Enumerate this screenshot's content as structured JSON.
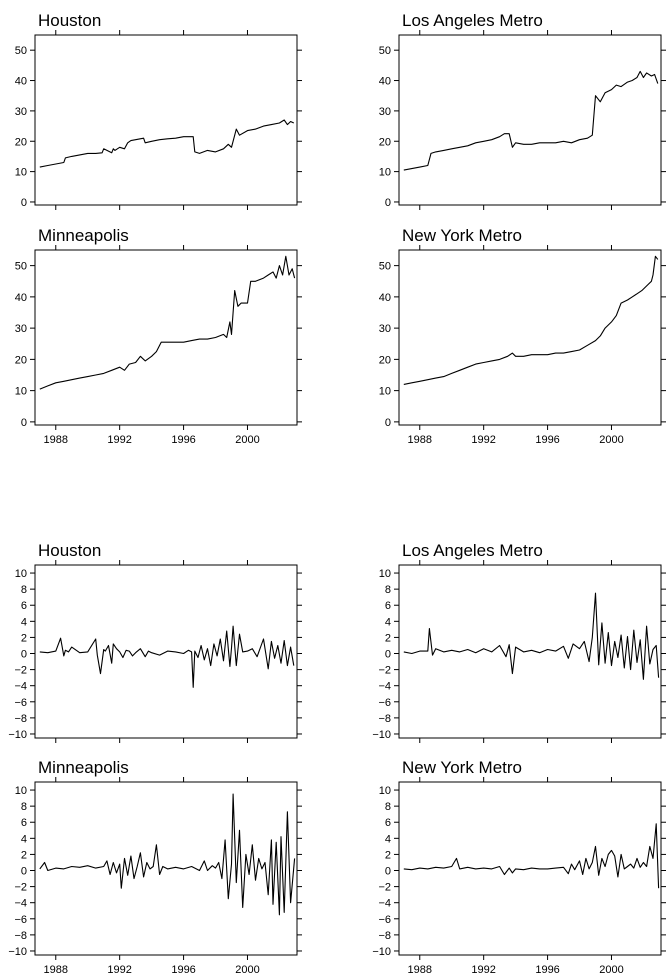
{
  "chart_data": [
    {
      "type": "line",
      "title": "Houston",
      "ylim": [
        -1,
        55
      ],
      "xlim": [
        1986.7,
        2003.1
      ],
      "y_ticks": [
        0,
        10,
        20,
        30,
        40,
        50
      ],
      "x_ticks": [
        1988,
        1992,
        1996,
        2000
      ],
      "show_x_tick_labels": false,
      "series": [
        {
          "x": [
            1987.0,
            1987.5,
            1988.0,
            1988.5,
            1988.6,
            1989.0,
            1989.5,
            1990.0,
            1990.5,
            1990.9,
            1991.0,
            1991.5,
            1991.6,
            1991.7,
            1992.0,
            1992.3,
            1992.5,
            1992.7,
            1993.0,
            1993.5,
            1993.6,
            1994.0,
            1994.5,
            1995.0,
            1995.5,
            1996.0,
            1996.5,
            1996.6,
            1996.7,
            1997.0,
            1997.5,
            1998.0,
            1998.5,
            1998.8,
            1999.0,
            1999.3,
            1999.5,
            2000.0,
            2000.5,
            2001.0,
            2001.5,
            2002.0,
            2002.3,
            2002.5,
            2002.7,
            2002.9
          ],
          "y": [
            11.5,
            12,
            12.5,
            13,
            14.5,
            15,
            15.5,
            16,
            16,
            16.2,
            17.5,
            16.2,
            17.5,
            17,
            18,
            17.5,
            19.5,
            20.2,
            20.5,
            21,
            19.5,
            20,
            20.5,
            20.8,
            21,
            21.5,
            21.5,
            21.5,
            16.5,
            16,
            17,
            16.5,
            17.5,
            19,
            18,
            24,
            22,
            23.5,
            24,
            25,
            25.5,
            26,
            27,
            25.5,
            26.5,
            26
          ]
        }
      ]
    },
    {
      "type": "line",
      "title": "Los Angeles Metro",
      "ylim": [
        -1,
        55
      ],
      "xlim": [
        1986.7,
        2003.1
      ],
      "y_ticks": [
        0,
        10,
        20,
        30,
        40,
        50
      ],
      "x_ticks": [
        1988,
        1992,
        1996,
        2000
      ],
      "show_x_tick_labels": false,
      "series": [
        {
          "x": [
            1987.0,
            1987.5,
            1988.0,
            1988.5,
            1988.7,
            1989.0,
            1989.5,
            1990.0,
            1990.5,
            1991.0,
            1991.5,
            1992.0,
            1992.5,
            1993.0,
            1993.3,
            1993.6,
            1993.8,
            1994.0,
            1994.5,
            1995.0,
            1995.5,
            1996.0,
            1996.5,
            1997.0,
            1997.5,
            1998.0,
            1998.5,
            1998.8,
            1999.0,
            1999.3,
            1999.6,
            2000.0,
            2000.3,
            2000.6,
            2001.0,
            2001.3,
            2001.6,
            2001.8,
            2002.0,
            2002.2,
            2002.5,
            2002.7,
            2002.9
          ],
          "y": [
            10.5,
            11,
            11.5,
            12,
            16,
            16.5,
            17,
            17.5,
            18,
            18.5,
            19.5,
            20,
            20.5,
            21.5,
            22.5,
            22.5,
            18,
            19.5,
            19,
            19,
            19.5,
            19.5,
            19.5,
            20,
            19.5,
            20.5,
            21,
            22,
            35,
            33,
            36,
            37,
            38.5,
            38,
            39.5,
            40,
            41,
            43,
            41,
            42.5,
            41.5,
            42,
            39
          ]
        }
      ]
    },
    {
      "type": "line",
      "title": "Minneapolis",
      "ylim": [
        -1,
        55
      ],
      "xlim": [
        1986.7,
        2003.1
      ],
      "y_ticks": [
        0,
        10,
        20,
        30,
        40,
        50
      ],
      "x_ticks": [
        1988,
        1992,
        1996,
        2000
      ],
      "show_x_tick_labels": true,
      "series": [
        {
          "x": [
            1987.0,
            1987.5,
            1988.0,
            1988.5,
            1989.0,
            1989.5,
            1990.0,
            1990.5,
            1991.0,
            1991.5,
            1992.0,
            1992.3,
            1992.6,
            1993.0,
            1993.3,
            1993.6,
            1994.0,
            1994.3,
            1994.6,
            1995.0,
            1995.5,
            1996.0,
            1996.5,
            1997.0,
            1997.5,
            1998.0,
            1998.5,
            1998.7,
            1998.9,
            1999.0,
            1999.2,
            1999.4,
            1999.6,
            2000.0,
            2000.2,
            2000.5,
            2001.0,
            2001.3,
            2001.6,
            2001.8,
            2002.0,
            2002.2,
            2002.4,
            2002.6,
            2002.8,
            2002.95
          ],
          "y": [
            10.5,
            11.5,
            12.5,
            13,
            13.5,
            14,
            14.5,
            15,
            15.5,
            16.5,
            17.5,
            16.5,
            18.5,
            19,
            21,
            19.5,
            21,
            22.5,
            25.5,
            25.5,
            25.5,
            25.5,
            26,
            26.5,
            26.5,
            27,
            28,
            27,
            32,
            28,
            42,
            37,
            38,
            38,
            45,
            45,
            46,
            47,
            48,
            46,
            50,
            47,
            53,
            47,
            49,
            46
          ]
        }
      ]
    },
    {
      "type": "line",
      "title": "New York Metro",
      "ylim": [
        -1,
        55
      ],
      "xlim": [
        1986.7,
        2003.1
      ],
      "y_ticks": [
        0,
        10,
        20,
        30,
        40,
        50
      ],
      "x_ticks": [
        1988,
        1992,
        1996,
        2000
      ],
      "show_x_tick_labels": true,
      "series": [
        {
          "x": [
            1987.0,
            1987.5,
            1988.0,
            1988.5,
            1989.0,
            1989.5,
            1990.0,
            1990.5,
            1991.0,
            1991.5,
            1992.0,
            1992.5,
            1993.0,
            1993.5,
            1993.8,
            1994.0,
            1994.5,
            1995.0,
            1995.5,
            1996.0,
            1996.5,
            1997.0,
            1997.5,
            1998.0,
            1998.5,
            1999.0,
            1999.3,
            1999.6,
            2000.0,
            2000.3,
            2000.6,
            2001.0,
            2001.3,
            2001.6,
            2001.9,
            2002.1,
            2002.3,
            2002.5,
            2002.6,
            2002.75,
            2002.9
          ],
          "y": [
            12,
            12.5,
            13,
            13.5,
            14,
            14.5,
            15.5,
            16.5,
            17.5,
            18.5,
            19,
            19.5,
            20,
            21,
            22,
            21,
            21,
            21.5,
            21.5,
            21.5,
            22,
            22,
            22.5,
            23,
            24.5,
            26,
            27.5,
            30,
            32,
            34,
            38,
            39,
            40,
            41,
            42,
            43,
            44,
            45,
            47,
            53,
            52
          ]
        }
      ]
    },
    {
      "type": "line",
      "title": "Houston",
      "ylim": [
        -10.5,
        11
      ],
      "xlim": [
        1986.7,
        2003.1
      ],
      "y_ticks": [
        10,
        8,
        6,
        4,
        2,
        0,
        -2,
        -4,
        -6,
        -8,
        -10
      ],
      "x_ticks": [
        1988,
        1992,
        1996,
        2000
      ],
      "show_x_tick_labels": false,
      "series": [
        {
          "x": [
            1987.0,
            1987.5,
            1988.0,
            1988.3,
            1988.5,
            1988.6,
            1988.8,
            1989.0,
            1989.5,
            1990.0,
            1990.5,
            1990.6,
            1990.8,
            1991.0,
            1991.1,
            1991.3,
            1991.5,
            1991.6,
            1991.8,
            1992.0,
            1992.2,
            1992.4,
            1992.6,
            1992.8,
            1993.0,
            1993.3,
            1993.6,
            1993.8,
            1994.0,
            1994.5,
            1995.0,
            1995.5,
            1996.0,
            1996.3,
            1996.5,
            1996.6,
            1996.7,
            1996.9,
            1997.1,
            1997.3,
            1997.5,
            1997.7,
            1997.9,
            1998.1,
            1998.3,
            1998.5,
            1998.7,
            1998.9,
            1999.0,
            1999.1,
            1999.3,
            1999.5,
            1999.7,
            2000.0,
            2000.3,
            2000.6,
            2001.0,
            2001.3,
            2001.5,
            2001.7,
            2001.9,
            2002.1,
            2002.3,
            2002.5,
            2002.7,
            2002.9
          ],
          "y": [
            0.2,
            0.1,
            0.3,
            1.9,
            -0.3,
            0.4,
            0.2,
            0.8,
            0.1,
            0.2,
            1.8,
            -0.2,
            -2.5,
            0.5,
            0.3,
            1.0,
            -1.2,
            1.2,
            0.6,
            0.2,
            -0.5,
            0.4,
            0.3,
            -0.3,
            0.1,
            0.6,
            -0.4,
            0.3,
            0.1,
            -0.2,
            0.3,
            0.2,
            0.0,
            0.4,
            0.2,
            -4.2,
            0.3,
            -0.5,
            1.0,
            -0.8,
            0.6,
            -1.5,
            1.2,
            -0.3,
            1.8,
            -0.9,
            2.8,
            -1.6,
            0.7,
            3.4,
            -1.5,
            2.4,
            0.2,
            0.3,
            0.6,
            -0.4,
            1.8,
            -1.9,
            1.5,
            -0.6,
            1.0,
            -1.2,
            1.6,
            -1.5,
            0.8,
            -1.5
          ]
        }
      ]
    },
    {
      "type": "line",
      "title": "Los Angeles Metro",
      "ylim": [
        -10.5,
        11
      ],
      "xlim": [
        1986.7,
        2003.1
      ],
      "y_ticks": [
        10,
        8,
        6,
        4,
        2,
        0,
        -2,
        -4,
        -6,
        -8,
        -10
      ],
      "x_ticks": [
        1988,
        1992,
        1996,
        2000
      ],
      "show_x_tick_labels": false,
      "series": [
        {
          "x": [
            1987.0,
            1987.5,
            1988.0,
            1988.5,
            1988.6,
            1988.8,
            1989.0,
            1989.5,
            1990.0,
            1990.5,
            1991.0,
            1991.5,
            1992.0,
            1992.5,
            1993.0,
            1993.4,
            1993.6,
            1993.8,
            1994.0,
            1994.5,
            1995.0,
            1995.5,
            1996.0,
            1996.5,
            1997.0,
            1997.3,
            1997.6,
            1998.0,
            1998.3,
            1998.6,
            1998.8,
            1999.0,
            1999.2,
            1999.4,
            1999.6,
            1999.8,
            2000.0,
            2000.2,
            2000.4,
            2000.6,
            2000.8,
            2001.0,
            2001.2,
            2001.4,
            2001.6,
            2001.8,
            2002.0,
            2002.2,
            2002.4,
            2002.6,
            2002.8,
            2002.95
          ],
          "y": [
            0.2,
            0.0,
            0.3,
            0.3,
            3.1,
            -0.2,
            0.6,
            0.2,
            0.4,
            0.2,
            0.5,
            0.1,
            0.6,
            0.2,
            1.0,
            -0.4,
            1.1,
            -2.5,
            0.8,
            0.2,
            0.4,
            0.1,
            0.5,
            0.3,
            0.9,
            -0.6,
            1.2,
            0.6,
            1.5,
            -1.0,
            2.0,
            7.5,
            -1.4,
            3.8,
            -1.2,
            2.6,
            -1.5,
            1.5,
            -0.5,
            2.3,
            -1.8,
            2.1,
            -2.0,
            2.9,
            -1.1,
            1.7,
            -3.2,
            3.4,
            -1.3,
            0.5,
            1.0,
            -3.0
          ]
        }
      ]
    },
    {
      "type": "line",
      "title": "Minneapolis",
      "ylim": [
        -10.5,
        11
      ],
      "xlim": [
        1986.7,
        2003.1
      ],
      "y_ticks": [
        10,
        8,
        6,
        4,
        2,
        0,
        -2,
        -4,
        -6,
        -8,
        -10
      ],
      "x_ticks": [
        1988,
        1992,
        1996,
        2000
      ],
      "show_x_tick_labels": true,
      "series": [
        {
          "x": [
            1987.0,
            1987.3,
            1987.5,
            1988.0,
            1988.5,
            1989.0,
            1989.5,
            1990.0,
            1990.5,
            1991.0,
            1991.2,
            1991.4,
            1991.6,
            1991.8,
            1992.0,
            1992.1,
            1992.3,
            1992.5,
            1992.7,
            1992.9,
            1993.1,
            1993.3,
            1993.5,
            1993.7,
            1993.9,
            1994.1,
            1994.3,
            1994.5,
            1994.7,
            1995.0,
            1995.5,
            1996.0,
            1996.5,
            1997.0,
            1997.3,
            1997.5,
            1997.8,
            1998.0,
            1998.2,
            1998.4,
            1998.6,
            1998.8,
            1999.0,
            1999.1,
            1999.3,
            1999.5,
            1999.7,
            1999.9,
            2000.1,
            2000.3,
            2000.5,
            2000.7,
            2000.9,
            2001.1,
            2001.3,
            2001.5,
            2001.6,
            2001.8,
            2002.0,
            2002.1,
            2002.3,
            2002.5,
            2002.7,
            2002.95
          ],
          "y": [
            0.2,
            1.0,
            0.0,
            0.3,
            0.2,
            0.5,
            0.4,
            0.6,
            0.3,
            0.5,
            1.2,
            -0.5,
            1.0,
            -0.3,
            0.8,
            -2.2,
            1.5,
            -0.6,
            1.8,
            -1.0,
            0.5,
            2.2,
            -0.8,
            1.0,
            0.2,
            0.5,
            3.2,
            -0.5,
            0.5,
            0.2,
            0.4,
            0.2,
            0.5,
            0.0,
            1.2,
            0.0,
            0.6,
            0.3,
            1.0,
            -1.0,
            3.8,
            -3.5,
            0.8,
            9.5,
            -1.5,
            5.0,
            -4.6,
            2.0,
            -0.5,
            3.2,
            -1.2,
            1.5,
            0.2,
            1.0,
            -3.0,
            3.8,
            -4.2,
            3.5,
            -5.5,
            4.2,
            -5.2,
            7.3,
            -4.0,
            1.5
          ]
        }
      ]
    },
    {
      "type": "line",
      "title": "New York Metro",
      "ylim": [
        -10.5,
        11
      ],
      "xlim": [
        1986.7,
        2003.1
      ],
      "y_ticks": [
        10,
        8,
        6,
        4,
        2,
        0,
        -2,
        -4,
        -6,
        -8,
        -10
      ],
      "x_ticks": [
        1988,
        1992,
        1996,
        2000
      ],
      "show_x_tick_labels": true,
      "series": [
        {
          "x": [
            1987.0,
            1987.5,
            1988.0,
            1988.5,
            1989.0,
            1989.5,
            1990.0,
            1990.3,
            1990.5,
            1991.0,
            1991.5,
            1992.0,
            1992.5,
            1993.0,
            1993.3,
            1993.6,
            1993.8,
            1994.0,
            1994.5,
            1995.0,
            1995.5,
            1996.0,
            1996.5,
            1997.0,
            1997.3,
            1997.5,
            1997.7,
            1998.0,
            1998.2,
            1998.4,
            1998.6,
            1998.8,
            1999.0,
            1999.2,
            1999.4,
            1999.6,
            1999.8,
            2000.0,
            2000.2,
            2000.4,
            2000.6,
            2000.8,
            2001.0,
            2001.2,
            2001.4,
            2001.6,
            2001.8,
            2002.0,
            2002.2,
            2002.4,
            2002.6,
            2002.8,
            2002.95
          ],
          "y": [
            0.2,
            0.1,
            0.3,
            0.2,
            0.4,
            0.3,
            0.5,
            1.5,
            0.2,
            0.4,
            0.2,
            0.3,
            0.2,
            0.5,
            -0.5,
            0.3,
            -0.3,
            0.2,
            0.1,
            0.3,
            0.2,
            0.2,
            0.3,
            0.4,
            -0.4,
            0.8,
            0.1,
            1.2,
            -0.5,
            1.5,
            0.2,
            1.0,
            3.0,
            -0.6,
            1.5,
            0.5,
            2.0,
            2.5,
            1.8,
            -0.8,
            2.0,
            0.2,
            0.5,
            0.8,
            0.3,
            1.5,
            0.4,
            1.0,
            0.5,
            3.0,
            1.5,
            5.8,
            -2.2
          ]
        }
      ]
    }
  ]
}
